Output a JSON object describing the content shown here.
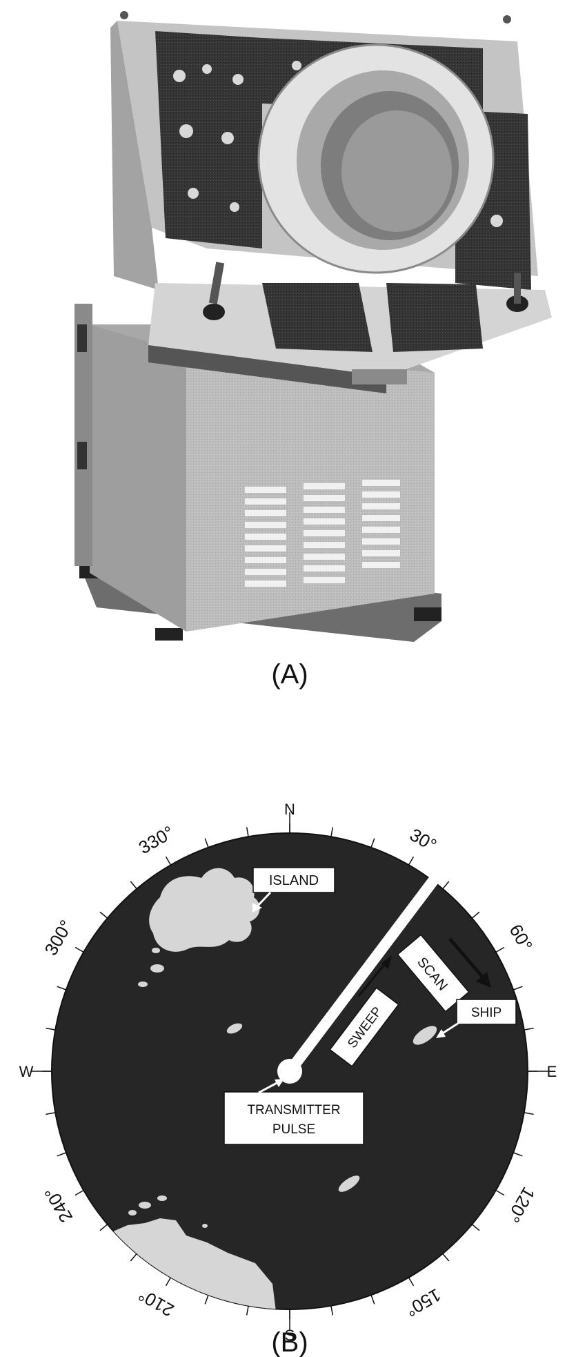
{
  "figure": {
    "panel_a_label": "(A)",
    "panel_b_label": "(B)"
  },
  "ppi_display": {
    "cardinals": {
      "north": "N",
      "south": "S",
      "east": "E",
      "west": "W"
    },
    "bearings": [
      {
        "bearing": 30,
        "label": "30°"
      },
      {
        "bearing": 60,
        "label": "60°"
      },
      {
        "bearing": 120,
        "label": "120°"
      },
      {
        "bearing": 150,
        "label": "150°"
      },
      {
        "bearing": 210,
        "label": "210°"
      },
      {
        "bearing": 240,
        "label": "240°"
      },
      {
        "bearing": 300,
        "label": "300°"
      },
      {
        "bearing": 330,
        "label": "330°"
      }
    ],
    "callouts": {
      "island": "ISLAND",
      "scan": "SCAN",
      "sweep": "SWEEP",
      "ship": "SHIP",
      "transmitter_line1": "TRANSMITTER",
      "transmitter_line2": "PULSE"
    },
    "sweep_bearing": 37,
    "tick_interval_degrees": 10
  },
  "colors": {
    "scope_face": "#262626",
    "echo": "#d6d6d6",
    "console_body": "#b9b9b9",
    "panel_dark": "#2e2e2e"
  }
}
